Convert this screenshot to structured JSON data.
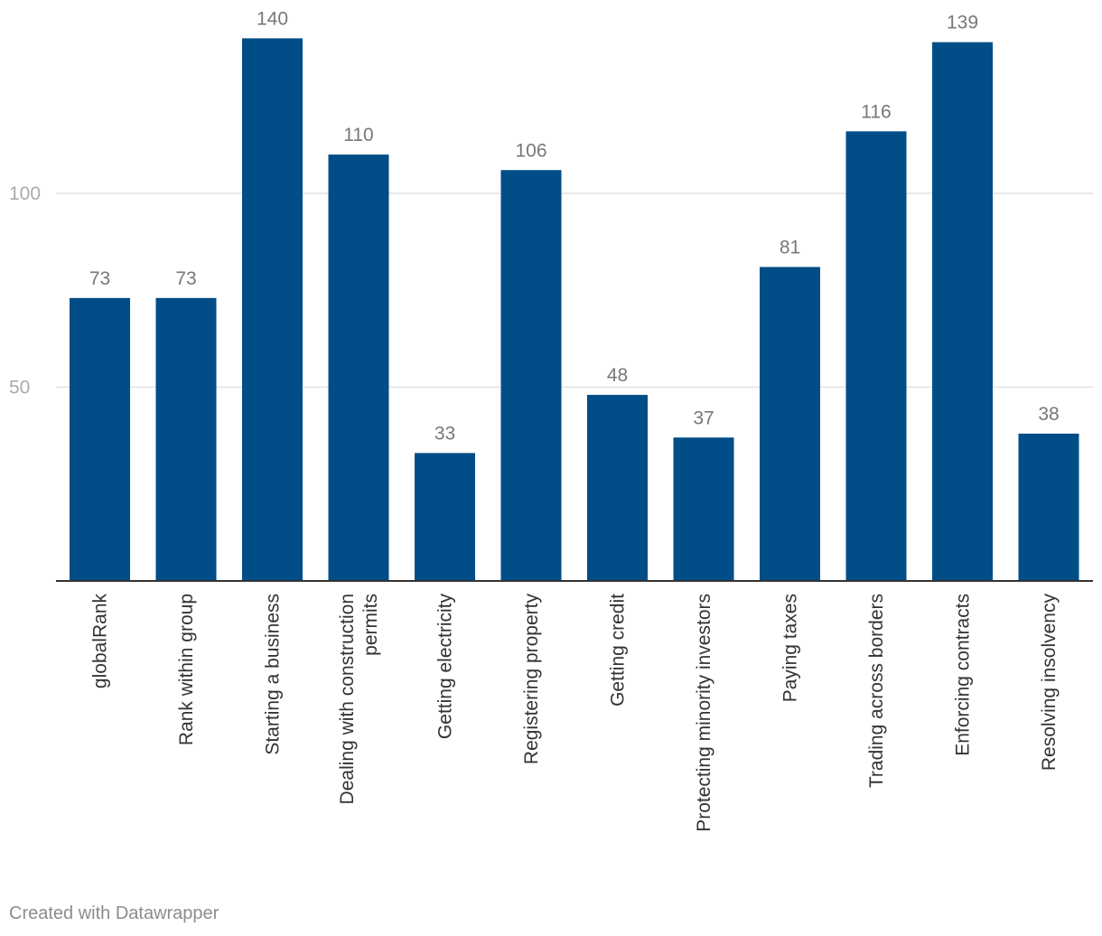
{
  "chart_data": {
    "type": "bar",
    "categories": [
      "globalRank",
      "Rank within group",
      "Starting a business",
      "Dealing with construction permits",
      "Getting electricity",
      "Registering property",
      "Getting credit",
      "Protecting minority investors",
      "Paying taxes",
      "Trading across borders",
      "Enforcing contracts",
      "Resolving insolvency"
    ],
    "category_label_lines": [
      [
        "globalRank"
      ],
      [
        "Rank within group"
      ],
      [
        "Starting a business"
      ],
      [
        "Dealing with construction",
        "permits"
      ],
      [
        "Getting electricity"
      ],
      [
        "Registering property"
      ],
      [
        "Getting credit"
      ],
      [
        "Protecting minority investors"
      ],
      [
        "Paying taxes"
      ],
      [
        "Trading across borders"
      ],
      [
        "Enforcing contracts"
      ],
      [
        "Resolving insolvency"
      ]
    ],
    "values": [
      73,
      73,
      140,
      110,
      33,
      106,
      48,
      37,
      81,
      116,
      139,
      38
    ],
    "value_labels": [
      "73",
      "73",
      "140",
      "110",
      "33",
      "106",
      "48",
      "37",
      "81",
      "116",
      "139",
      "38"
    ],
    "ylim": [
      0,
      150
    ],
    "yticks": [
      50,
      100
    ],
    "ytick_labels": [
      "50",
      "100"
    ],
    "grid": true,
    "title": "",
    "xlabel": "",
    "ylabel": "",
    "colors": {
      "bar": "#004d87",
      "value_label": "#777777",
      "tick_label": "#aaaaaa",
      "grid": "#e2e2e2",
      "axis": "#333333",
      "category_label": "#333333"
    }
  },
  "footer": {
    "credit": "Created with Datawrapper"
  }
}
